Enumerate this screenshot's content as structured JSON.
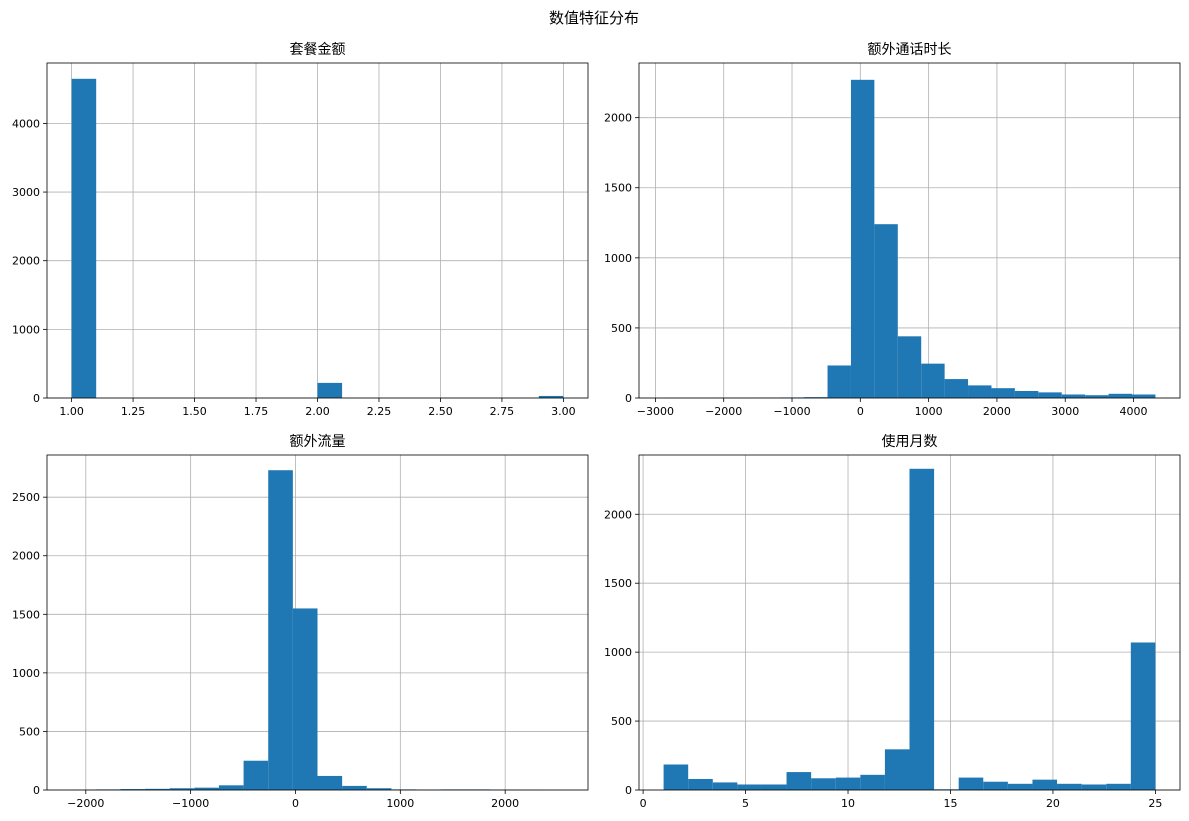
{
  "figure": {
    "suptitle": "数值特征分布"
  },
  "colors": {
    "bar": "#1f77b4",
    "grid": "#b0b0b0",
    "spine": "#000000"
  },
  "chart_data": [
    {
      "type": "bar",
      "title": "套餐金额",
      "xlabel": "",
      "ylabel": "",
      "grid": true,
      "xlim": [
        0.9,
        3.1
      ],
      "ylim": [
        0,
        4880
      ],
      "xticks": [
        1.0,
        1.25,
        1.5,
        1.75,
        2.0,
        2.25,
        2.5,
        2.75,
        3.0
      ],
      "xtick_labels": [
        "1.00",
        "1.25",
        "1.50",
        "1.75",
        "2.00",
        "2.25",
        "2.50",
        "2.75",
        "3.00"
      ],
      "yticks": [
        0,
        1000,
        2000,
        3000,
        4000
      ],
      "ytick_labels": [
        "0",
        "1000",
        "2000",
        "3000",
        "4000"
      ],
      "bin_start": 1.0,
      "bin_end": 3.0,
      "counts": [
        4650,
        0,
        0,
        0,
        0,
        0,
        0,
        0,
        0,
        0,
        220,
        0,
        0,
        0,
        0,
        0,
        0,
        0,
        0,
        30
      ]
    },
    {
      "type": "bar",
      "title": "额外通话时长",
      "xlabel": "",
      "ylabel": "",
      "grid": true,
      "xlim": [
        -3240,
        4680
      ],
      "ylim": [
        0,
        2390
      ],
      "xticks": [
        -3000,
        -2000,
        -1000,
        0,
        1000,
        2000,
        3000,
        4000
      ],
      "xtick_labels": [
        "−3000",
        "−2000",
        "−1000",
        "0",
        "1000",
        "2000",
        "3000",
        "4000"
      ],
      "yticks": [
        0,
        500,
        1000,
        1500,
        2000
      ],
      "ytick_labels": [
        "0",
        "500",
        "1000",
        "1500",
        "2000"
      ],
      "bin_start": -2880,
      "bin_end": 4320,
      "counts": [
        1,
        1,
        2,
        2,
        3,
        4,
        6,
        232,
        2270,
        1240,
        440,
        245,
        135,
        90,
        70,
        50,
        40,
        25,
        20,
        30,
        25
      ]
    },
    {
      "type": "bar",
      "title": "额外流量",
      "xlabel": "",
      "ylabel": "",
      "grid": true,
      "xlim": [
        -2370,
        2790
      ],
      "ylim": [
        0,
        2860
      ],
      "xticks": [
        -2000,
        -1000,
        0,
        1000,
        2000
      ],
      "xtick_labels": [
        "−2000",
        "−1000",
        "0",
        "1000",
        "2000"
      ],
      "yticks": [
        0,
        500,
        1000,
        1500,
        2000,
        2500
      ],
      "ytick_labels": [
        "0",
        "500",
        "1000",
        "1500",
        "2000",
        "2500"
      ],
      "bin_start": -2140,
      "bin_end": 2560,
      "counts": [
        2,
        5,
        8,
        10,
        15,
        20,
        40,
        250,
        2730,
        1550,
        120,
        35,
        15,
        5,
        3,
        5,
        5,
        3,
        2,
        1
      ]
    },
    {
      "type": "bar",
      "title": "使用月数",
      "xlabel": "",
      "ylabel": "",
      "grid": true,
      "xlim": [
        -0.2,
        26.2
      ],
      "ylim": [
        0,
        2430
      ],
      "xticks": [
        0,
        5,
        10,
        15,
        20,
        25
      ],
      "xtick_labels": [
        "0",
        "5",
        "10",
        "15",
        "20",
        "25"
      ],
      "yticks": [
        0,
        500,
        1000,
        1500,
        2000
      ],
      "ytick_labels": [
        "0",
        "500",
        "1000",
        "1500",
        "2000"
      ],
      "bin_start": 1.0,
      "bin_end": 25.0,
      "counts": [
        185,
        80,
        55,
        40,
        40,
        130,
        85,
        90,
        110,
        295,
        2330,
        5,
        90,
        60,
        45,
        75,
        45,
        40,
        45,
        1070
      ]
    }
  ]
}
